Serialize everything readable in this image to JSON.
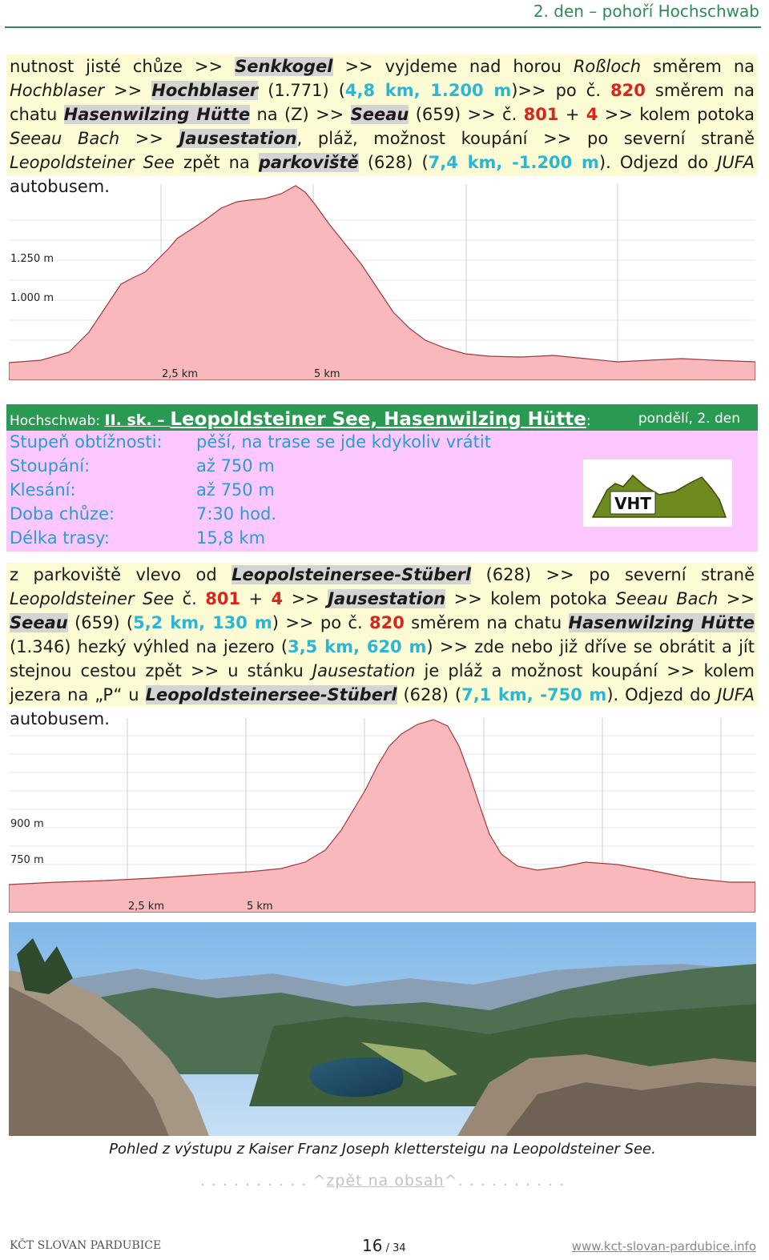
{
  "header": {
    "title": "2. den – pohoří Hochschwab"
  },
  "intro_paragraph": {
    "p1": "nutnost jisté chůze >> ",
    "senkkogel": "Senkkogel",
    "p2": " >> vyjdeme nad horou ",
    "rossloch": "Roßloch",
    "p3": " směrem na ",
    "hochblaser_i": "Hochblaser",
    "p4": " >> ",
    "hochblaser_b": "Hochblaser",
    "p5": " (1.771) (",
    "dist1": "4,8 km, 1.200 m",
    "p6": ")>> po č. ",
    "n820": "820",
    "p7": " směrem na chatu ",
    "hasenwilzing": "Hasenwilzing Hütte",
    "p8": " na (Z) >> ",
    "seeau": "Seeau",
    "p9": " (659) >> č. ",
    "n801": "801",
    "p10": " + ",
    "n4": "4",
    "p11": " >> kolem potoka ",
    "seeau_bach": "Seeau Bach",
    "p12": " >> ",
    "jausestation": "Jausestation",
    "p13": ", pláž, možnost koupání >> po severní straně ",
    "leopoldsteiner_see": "Leopoldsteiner See",
    "p14": " zpět na ",
    "parkoviste": "parkoviště",
    "p15": " (628) (",
    "dist2": "7,4 km, -1.200 m",
    "p16": "). Odjezd do ",
    "jufa": "JUFA",
    "p17": " autobusem."
  },
  "profile1": {
    "y_labels": [
      "1.250 m",
      "1.000 m"
    ],
    "x_labels": [
      "2,5 km",
      "5 km"
    ]
  },
  "route": {
    "region_label": "Hochschwab: ",
    "level": "II. sk.",
    "dash": " – ",
    "name": "Leopoldsteiner See, Hasenwilzing Hütte",
    "colon": ":",
    "day": "pondělí, 2. den"
  },
  "stats": [
    {
      "label": "Stupeň obtížnosti:",
      "value": "pěší, na trase se jde kdykoliv vrátit"
    },
    {
      "label": "Stoupání:",
      "value": "až 750 m"
    },
    {
      "label": "Klesání:",
      "value": "až 750 m"
    },
    {
      "label": "Doba chůze:",
      "value": "7:30 hod."
    },
    {
      "label": "Délka trasy:",
      "value": "15,8 km"
    }
  ],
  "logo": {
    "text": "VHT"
  },
  "route_paragraph": {
    "p1": "z parkoviště vlevo od ",
    "stuberl1": "Leopolsteinersee-Stüberl",
    "p2": " (628) >> po severní straně ",
    "leop": "Leopoldsteiner See",
    "p3": " č. ",
    "n801": "801",
    "p4": " + ",
    "n4": "4",
    "p5": " >> ",
    "jausestation": "Jausestation",
    "p6": " >> kolem potoka ",
    "seeau_bach": "Seeau Bach",
    "p7": " >> ",
    "seeau": "Seeau",
    "p8": " (659) (",
    "dist1": "5,2 km, 130 m",
    "p9": ") >> po č. ",
    "n820": "820",
    "p10": " směrem na chatu ",
    "hasenwilzing": "Hasenwilzing Hütte",
    "p11": " (1.346) hezký výhled na jezero (",
    "dist2": "3,5 km, 620 m",
    "p12": ") >> zde nebo již dříve se obrátit a jít stejnou cestou zpět >> u stánku ",
    "jausestation_i": "Jausestation",
    "p13": " je pláž a možnost koupání >> kolem jezera na „P“ u ",
    "stuberl2": "Leopoldsteinersee-Stüberl",
    "p14": " (628) (",
    "dist3": "7,1 km, -750 m",
    "p15": "). Odjezd do ",
    "jufa": "JUFA",
    "p16": " autobusem."
  },
  "profile2": {
    "y_labels": [
      "900 m",
      "750 m"
    ],
    "x_labels": [
      "2,5 km",
      "5 km"
    ]
  },
  "photo": {
    "caption": "Pohled z výstupu  z Kaiser Franz Joseph  klettersteigu na Leopoldsteiner See."
  },
  "back_link": {
    "dots_left": ". . . . . . . . . . ^",
    "text": "zpět na obsah",
    "dots_right": "^. . . . . . . . . ."
  },
  "footer": {
    "left": "KČT SLOVAN PARDUBICE",
    "page": "16",
    "total": " / 34",
    "url": "www.kct-slovan-pardubice.info"
  },
  "colors": {
    "green": "#2a9a52",
    "cyan": "#2ab6d4",
    "red": "#d8261a",
    "yellow_bg": "#fdfbd3",
    "pink_bg": "#fec7ff",
    "profile_fill": "#f8b8bc"
  }
}
